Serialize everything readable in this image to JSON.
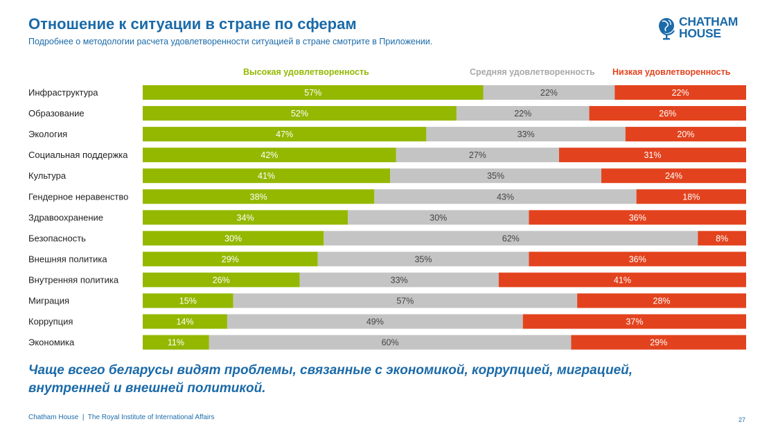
{
  "header": {
    "title": "Отношение к ситуации в стране по сферам",
    "subtitle": "Подробнее о методологии расчета удовлетворенности ситуацией в стране смотрите в Приложении.",
    "logo_line1": "CHATHAM",
    "logo_line2": "HOUSE"
  },
  "colors": {
    "high": "#94b800",
    "mid": "#c4c4c4",
    "low": "#e2431e",
    "accent": "#1b6aa8"
  },
  "chart_data": {
    "type": "bar",
    "orientation": "horizontal",
    "stacked": true,
    "legend_position": "top",
    "categories": [
      "Инфраструктура",
      "Образование",
      "Экология",
      "Социальная поддержка",
      "Культура",
      "Гендерное неравенство",
      "Здравоохранение",
      "Безопасность",
      "Внешняя политика",
      "Внутренняя политика",
      "Миграция",
      "Коррупция",
      "Экономика"
    ],
    "series": [
      {
        "name": "Высокая удовлетворенность",
        "color": "#94b800",
        "values": [
          57,
          52,
          47,
          42,
          41,
          38,
          34,
          30,
          29,
          26,
          15,
          14,
          11
        ]
      },
      {
        "name": "Средняя удовлетворенность",
        "color": "#c4c4c4",
        "values": [
          22,
          22,
          33,
          27,
          35,
          43,
          30,
          62,
          35,
          33,
          57,
          49,
          60
        ]
      },
      {
        "name": "Низкая удовлетворенность",
        "color": "#e2431e",
        "values": [
          22,
          26,
          20,
          31,
          24,
          18,
          36,
          8,
          36,
          41,
          28,
          37,
          29
        ]
      }
    ],
    "value_suffix": "%"
  },
  "conclusion": {
    "line1": "Чаще всего беларусы видят проблемы, связанные с экономикой, коррупцией, миграцией,",
    "line2": "внутренней и внешней политикой."
  },
  "footer": {
    "text": "Chatham House  |  The Royal Institute of International Affairs",
    "page": "27"
  }
}
